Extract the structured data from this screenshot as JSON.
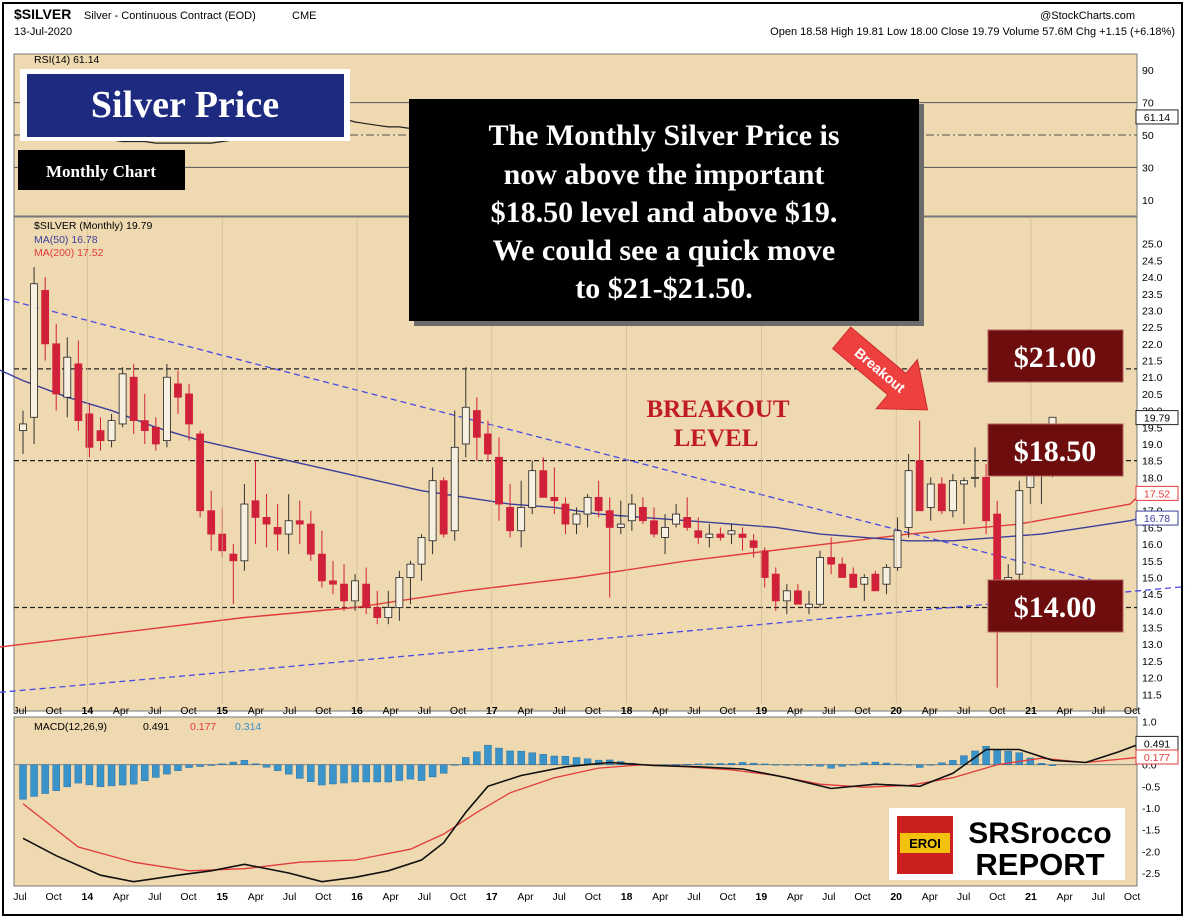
{
  "header": {
    "symbol": "$SILVER",
    "description": "Silver - Continuous Contract (EOD)",
    "exchange": "CME",
    "date": "13-Jul-2020",
    "source": "@StockCharts.com",
    "ohlc": "Open 18.58  High 19.81  Low 18.00  Close 19.79  Volume 57.6M  Chg +1.15 (+6.18%)"
  },
  "overlays": {
    "title": "Silver Price",
    "subtitle": "Monthly Chart",
    "commentary": [
      "The Monthly Silver Price is",
      "now above the important",
      "$18.50 level and above $19.",
      "We could see a quick move",
      "to $21-$21.50."
    ],
    "breakout_level": [
      "BREAKOUT",
      "LEVEL"
    ],
    "breakout_arrow": "Breakout",
    "price_boxes": [
      "$21.00",
      "$18.50",
      "$14.00"
    ],
    "logo_top": "SRSrocco",
    "logo_bottom": "REPORT",
    "logo_badge": "EROI"
  },
  "colors": {
    "panel_bg": "#efd9b0",
    "up_candle": "#f7f0e0",
    "down_candle": "#d1203a",
    "ma50": "#3b3f9c",
    "ma200": "#e23b3b",
    "trendline": "#4a4ae6",
    "title_box": "#1e2a80",
    "price_box": "#6e0d0d",
    "macd_hist": "#3a93c9",
    "signal": "#e23b3b"
  },
  "chart_data": [
    {
      "type": "line",
      "panel": "RSI",
      "title": "RSI(14) 61.14",
      "series": [
        {
          "name": "RSI(14)",
          "last": 61.14
        }
      ],
      "ylim": [
        0,
        100
      ],
      "y_ticks": [
        "90",
        "70",
        "50",
        "30",
        "10"
      ],
      "value_label": "61.14",
      "values": [
        54,
        55,
        54,
        52,
        50,
        49,
        48,
        47,
        47,
        46,
        46,
        46,
        45,
        45,
        45,
        45,
        45,
        45,
        46,
        47,
        47,
        48,
        48,
        49,
        52,
        55,
        58,
        60,
        62,
        60,
        58,
        57,
        56,
        55,
        55,
        54,
        54,
        53,
        53,
        52,
        52,
        52,
        52,
        52,
        51,
        51,
        50,
        50,
        50,
        49,
        49,
        50,
        51,
        52,
        52,
        52,
        53,
        53,
        53,
        54,
        55,
        56,
        57,
        57,
        58,
        58,
        57,
        57,
        57,
        56,
        56,
        55,
        50,
        52,
        55,
        59,
        60,
        61
      ]
    },
    {
      "type": "candlestick",
      "panel": "price",
      "title": "$SILVER (Monthly) 19.79",
      "legend": [
        "MA(50) 16.78",
        "MA(200) 17.52"
      ],
      "series": [
        {
          "name": "$SILVER (Monthly)",
          "last": 19.79
        },
        {
          "name": "MA(50)",
          "last": 16.78
        },
        {
          "name": "MA(200)",
          "last": 17.52
        }
      ],
      "ylim": [
        11.0,
        25.8
      ],
      "y_ticks": [
        "25.0",
        "24.5",
        "24.0",
        "23.5",
        "23.0",
        "22.5",
        "22.0",
        "21.5",
        "21.0",
        "20.5",
        "20.0",
        "19.5",
        "19.0",
        "18.5",
        "18.0",
        "17.5",
        "17.0",
        "16.5",
        "16.0",
        "15.5",
        "15.0",
        "14.5",
        "14.0",
        "13.5",
        "13.0",
        "12.5",
        "12.0",
        "11.5"
      ],
      "value_labels": [
        "19.79",
        "17.52",
        "16.78"
      ],
      "horizontal_levels": [
        21.25,
        18.5,
        14.1
      ],
      "x_ticks": [
        "Jul",
        "Oct",
        "14",
        "Apr",
        "Jul",
        "Oct",
        "15",
        "Apr",
        "Jul",
        "Oct",
        "16",
        "Apr",
        "Jul",
        "Oct",
        "17",
        "Apr",
        "Jul",
        "Oct",
        "18",
        "Apr",
        "Jul",
        "Oct",
        "19",
        "Apr",
        "Jul",
        "Oct",
        "20",
        "Apr",
        "Jul",
        "Oct",
        "21",
        "Apr",
        "Jul",
        "Oct"
      ],
      "candles": [
        [
          19.4,
          20.0,
          18.7,
          19.6
        ],
        [
          19.8,
          24.3,
          19.0,
          23.8
        ],
        [
          23.6,
          24.0,
          21.5,
          22.0
        ],
        [
          22.0,
          22.6,
          20.0,
          20.5
        ],
        [
          20.4,
          22.2,
          19.8,
          21.6
        ],
        [
          21.4,
          22.1,
          19.4,
          19.7
        ],
        [
          19.9,
          20.2,
          18.6,
          18.9
        ],
        [
          19.4,
          19.8,
          18.8,
          19.1
        ],
        [
          19.1,
          19.9,
          18.9,
          19.7
        ],
        [
          19.6,
          21.3,
          19.5,
          21.1
        ],
        [
          21.0,
          21.4,
          19.3,
          19.7
        ],
        [
          19.7,
          20.5,
          19.0,
          19.4
        ],
        [
          19.5,
          19.8,
          18.8,
          19.0
        ],
        [
          19.1,
          21.4,
          18.9,
          21.0
        ],
        [
          20.8,
          21.2,
          19.9,
          20.4
        ],
        [
          20.5,
          20.8,
          19.1,
          19.6
        ],
        [
          19.3,
          19.4,
          16.8,
          17.0
        ],
        [
          17.0,
          17.6,
          15.8,
          16.3
        ],
        [
          16.3,
          17.1,
          15.6,
          15.8
        ],
        [
          15.7,
          16.0,
          14.2,
          15.5
        ],
        [
          15.5,
          17.8,
          15.2,
          17.2
        ],
        [
          17.3,
          18.5,
          16.0,
          16.8
        ],
        [
          16.8,
          17.5,
          15.9,
          16.6
        ],
        [
          16.5,
          17.2,
          15.8,
          16.3
        ],
        [
          16.3,
          17.5,
          15.7,
          16.7
        ],
        [
          16.7,
          17.3,
          16.0,
          16.6
        ],
        [
          16.6,
          17.0,
          15.5,
          15.7
        ],
        [
          15.7,
          16.4,
          14.7,
          14.9
        ],
        [
          14.9,
          15.5,
          14.5,
          14.8
        ],
        [
          14.8,
          15.4,
          14.0,
          14.3
        ],
        [
          14.3,
          15.1,
          14.0,
          14.9
        ],
        [
          14.8,
          15.3,
          13.9,
          14.1
        ],
        [
          14.1,
          14.6,
          13.6,
          13.8
        ],
        [
          13.8,
          14.6,
          13.6,
          14.1
        ],
        [
          14.1,
          15.2,
          13.7,
          15.0
        ],
        [
          15.0,
          15.5,
          14.2,
          15.4
        ],
        [
          15.4,
          16.3,
          14.9,
          16.2
        ],
        [
          16.1,
          18.3,
          15.7,
          17.9
        ],
        [
          17.9,
          18.0,
          16.2,
          16.3
        ],
        [
          16.4,
          20.0,
          16.1,
          18.9
        ],
        [
          19.0,
          21.3,
          18.6,
          20.1
        ],
        [
          20.0,
          20.4,
          18.5,
          19.2
        ],
        [
          19.3,
          19.7,
          18.5,
          18.7
        ],
        [
          18.6,
          19.2,
          16.7,
          17.2
        ],
        [
          17.1,
          17.8,
          16.2,
          16.4
        ],
        [
          16.4,
          17.9,
          15.9,
          17.1
        ],
        [
          17.1,
          18.5,
          16.9,
          18.2
        ],
        [
          18.2,
          18.6,
          17.4,
          17.4
        ],
        [
          17.4,
          18.3,
          16.9,
          17.3
        ],
        [
          17.2,
          17.4,
          16.3,
          16.6
        ],
        [
          16.6,
          17.1,
          16.3,
          16.9
        ],
        [
          16.9,
          17.5,
          16.5,
          17.4
        ],
        [
          17.4,
          17.9,
          16.8,
          17.0
        ],
        [
          17.0,
          17.4,
          14.4,
          16.5
        ],
        [
          16.5,
          17.3,
          16.3,
          16.6
        ],
        [
          16.7,
          17.5,
          16.4,
          17.2
        ],
        [
          17.1,
          17.4,
          16.6,
          16.7
        ],
        [
          16.7,
          17.1,
          16.2,
          16.3
        ],
        [
          16.2,
          16.9,
          15.7,
          16.5
        ],
        [
          16.6,
          17.2,
          16.5,
          16.9
        ],
        [
          16.8,
          17.4,
          16.4,
          16.5
        ],
        [
          16.4,
          16.8,
          16.0,
          16.2
        ],
        [
          16.2,
          16.6,
          15.9,
          16.3
        ],
        [
          16.3,
          16.5,
          16.1,
          16.2
        ],
        [
          16.3,
          16.6,
          16.0,
          16.4
        ],
        [
          16.3,
          16.5,
          15.8,
          16.2
        ],
        [
          16.1,
          16.3,
          15.6,
          15.9
        ],
        [
          15.8,
          15.9,
          14.7,
          15.0
        ],
        [
          15.1,
          15.3,
          14.0,
          14.3
        ],
        [
          14.3,
          14.8,
          13.9,
          14.6
        ],
        [
          14.6,
          14.8,
          14.2,
          14.2
        ],
        [
          14.1,
          14.6,
          13.9,
          14.2
        ],
        [
          14.2,
          15.8,
          14.1,
          15.6
        ],
        [
          15.6,
          16.2,
          15.1,
          15.4
        ],
        [
          15.4,
          15.6,
          15.0,
          15.0
        ],
        [
          15.1,
          15.3,
          14.7,
          14.7
        ],
        [
          14.8,
          15.1,
          14.3,
          15.0
        ],
        [
          15.1,
          15.2,
          14.6,
          14.6
        ],
        [
          14.8,
          15.4,
          14.5,
          15.3
        ],
        [
          15.3,
          16.8,
          15.2,
          16.4
        ],
        [
          16.5,
          18.7,
          16.2,
          18.2
        ],
        [
          18.5,
          19.7,
          17.1,
          17.0
        ],
        [
          17.1,
          18.0,
          16.7,
          17.8
        ],
        [
          17.8,
          18.0,
          16.9,
          17.0
        ],
        [
          17.0,
          18.1,
          16.8,
          17.9
        ],
        [
          17.8,
          18.0,
          16.6,
          17.9
        ],
        [
          18.0,
          18.9,
          17.7,
          18.0
        ],
        [
          18.0,
          18.4,
          16.3,
          16.7
        ],
        [
          16.9,
          17.3,
          11.7,
          14.2
        ],
        [
          14.2,
          15.4,
          14.0,
          15.0
        ],
        [
          15.1,
          17.9,
          14.9,
          17.6
        ],
        [
          17.7,
          18.7,
          17.2,
          18.5
        ],
        [
          18.5,
          19.0,
          17.2,
          18.6
        ],
        [
          18.6,
          19.8,
          18.0,
          19.8
        ]
      ],
      "ma50": [
        [
          -30,
          25.8
        ],
        [
          -20,
          25.0
        ],
        [
          -16,
          24.3
        ],
        [
          -12,
          23.4
        ],
        [
          -8,
          22.3
        ],
        [
          -4,
          21.5
        ],
        [
          0,
          20.9
        ],
        [
          4,
          20.4
        ],
        [
          8,
          20.0
        ],
        [
          12,
          19.5
        ],
        [
          16,
          19.1
        ],
        [
          20,
          18.8
        ],
        [
          24,
          18.5
        ],
        [
          28,
          18.2
        ],
        [
          32,
          17.9
        ],
        [
          36,
          17.6
        ],
        [
          40,
          17.4
        ],
        [
          44,
          17.2
        ],
        [
          48,
          17.1
        ],
        [
          52,
          16.9
        ],
        [
          56,
          16.8
        ],
        [
          60,
          16.7
        ],
        [
          64,
          16.6
        ],
        [
          68,
          16.5
        ],
        [
          72,
          16.3
        ],
        [
          76,
          16.2
        ],
        [
          80,
          16.1
        ],
        [
          84,
          16.1
        ],
        [
          88,
          16.2
        ],
        [
          92,
          16.3
        ],
        [
          96,
          16.5
        ],
        [
          100,
          16.7
        ],
        [
          101,
          16.78
        ]
      ],
      "ma200": [
        [
          -18,
          12.3
        ],
        [
          -10,
          12.6
        ],
        [
          0,
          13.0
        ],
        [
          10,
          13.4
        ],
        [
          20,
          13.8
        ],
        [
          30,
          14.1
        ],
        [
          40,
          14.6
        ],
        [
          50,
          15.0
        ],
        [
          60,
          15.5
        ],
        [
          70,
          15.9
        ],
        [
          80,
          16.3
        ],
        [
          90,
          16.6
        ],
        [
          100,
          17.2
        ],
        [
          101,
          17.52
        ]
      ],
      "trendlines": [
        [
          [
            -21,
            11.0
          ],
          [
            121,
            15.2
          ]
        ],
        [
          [
            -14,
            24.4
          ],
          [
            98,
            14.8
          ]
        ]
      ]
    },
    {
      "type": "bar",
      "panel": "MACD",
      "title": "MACD(12,26,9)",
      "legend": [
        "0.491",
        "0.177",
        "0.314"
      ],
      "series": [
        {
          "name": "MACD(12,26,9)",
          "last": 0.491
        },
        {
          "name": "Signal",
          "last": 0.177
        },
        {
          "name": "Histogram",
          "last": 0.314
        }
      ],
      "ylim": [
        -2.8,
        1.1
      ],
      "y_ticks": [
        "1.0",
        "0.5",
        "0.0",
        "-0.5",
        "-1.0",
        "-1.5",
        "-2.0",
        "-2.5"
      ],
      "value_labels": [
        "0.491",
        "0.177"
      ]
    }
  ]
}
